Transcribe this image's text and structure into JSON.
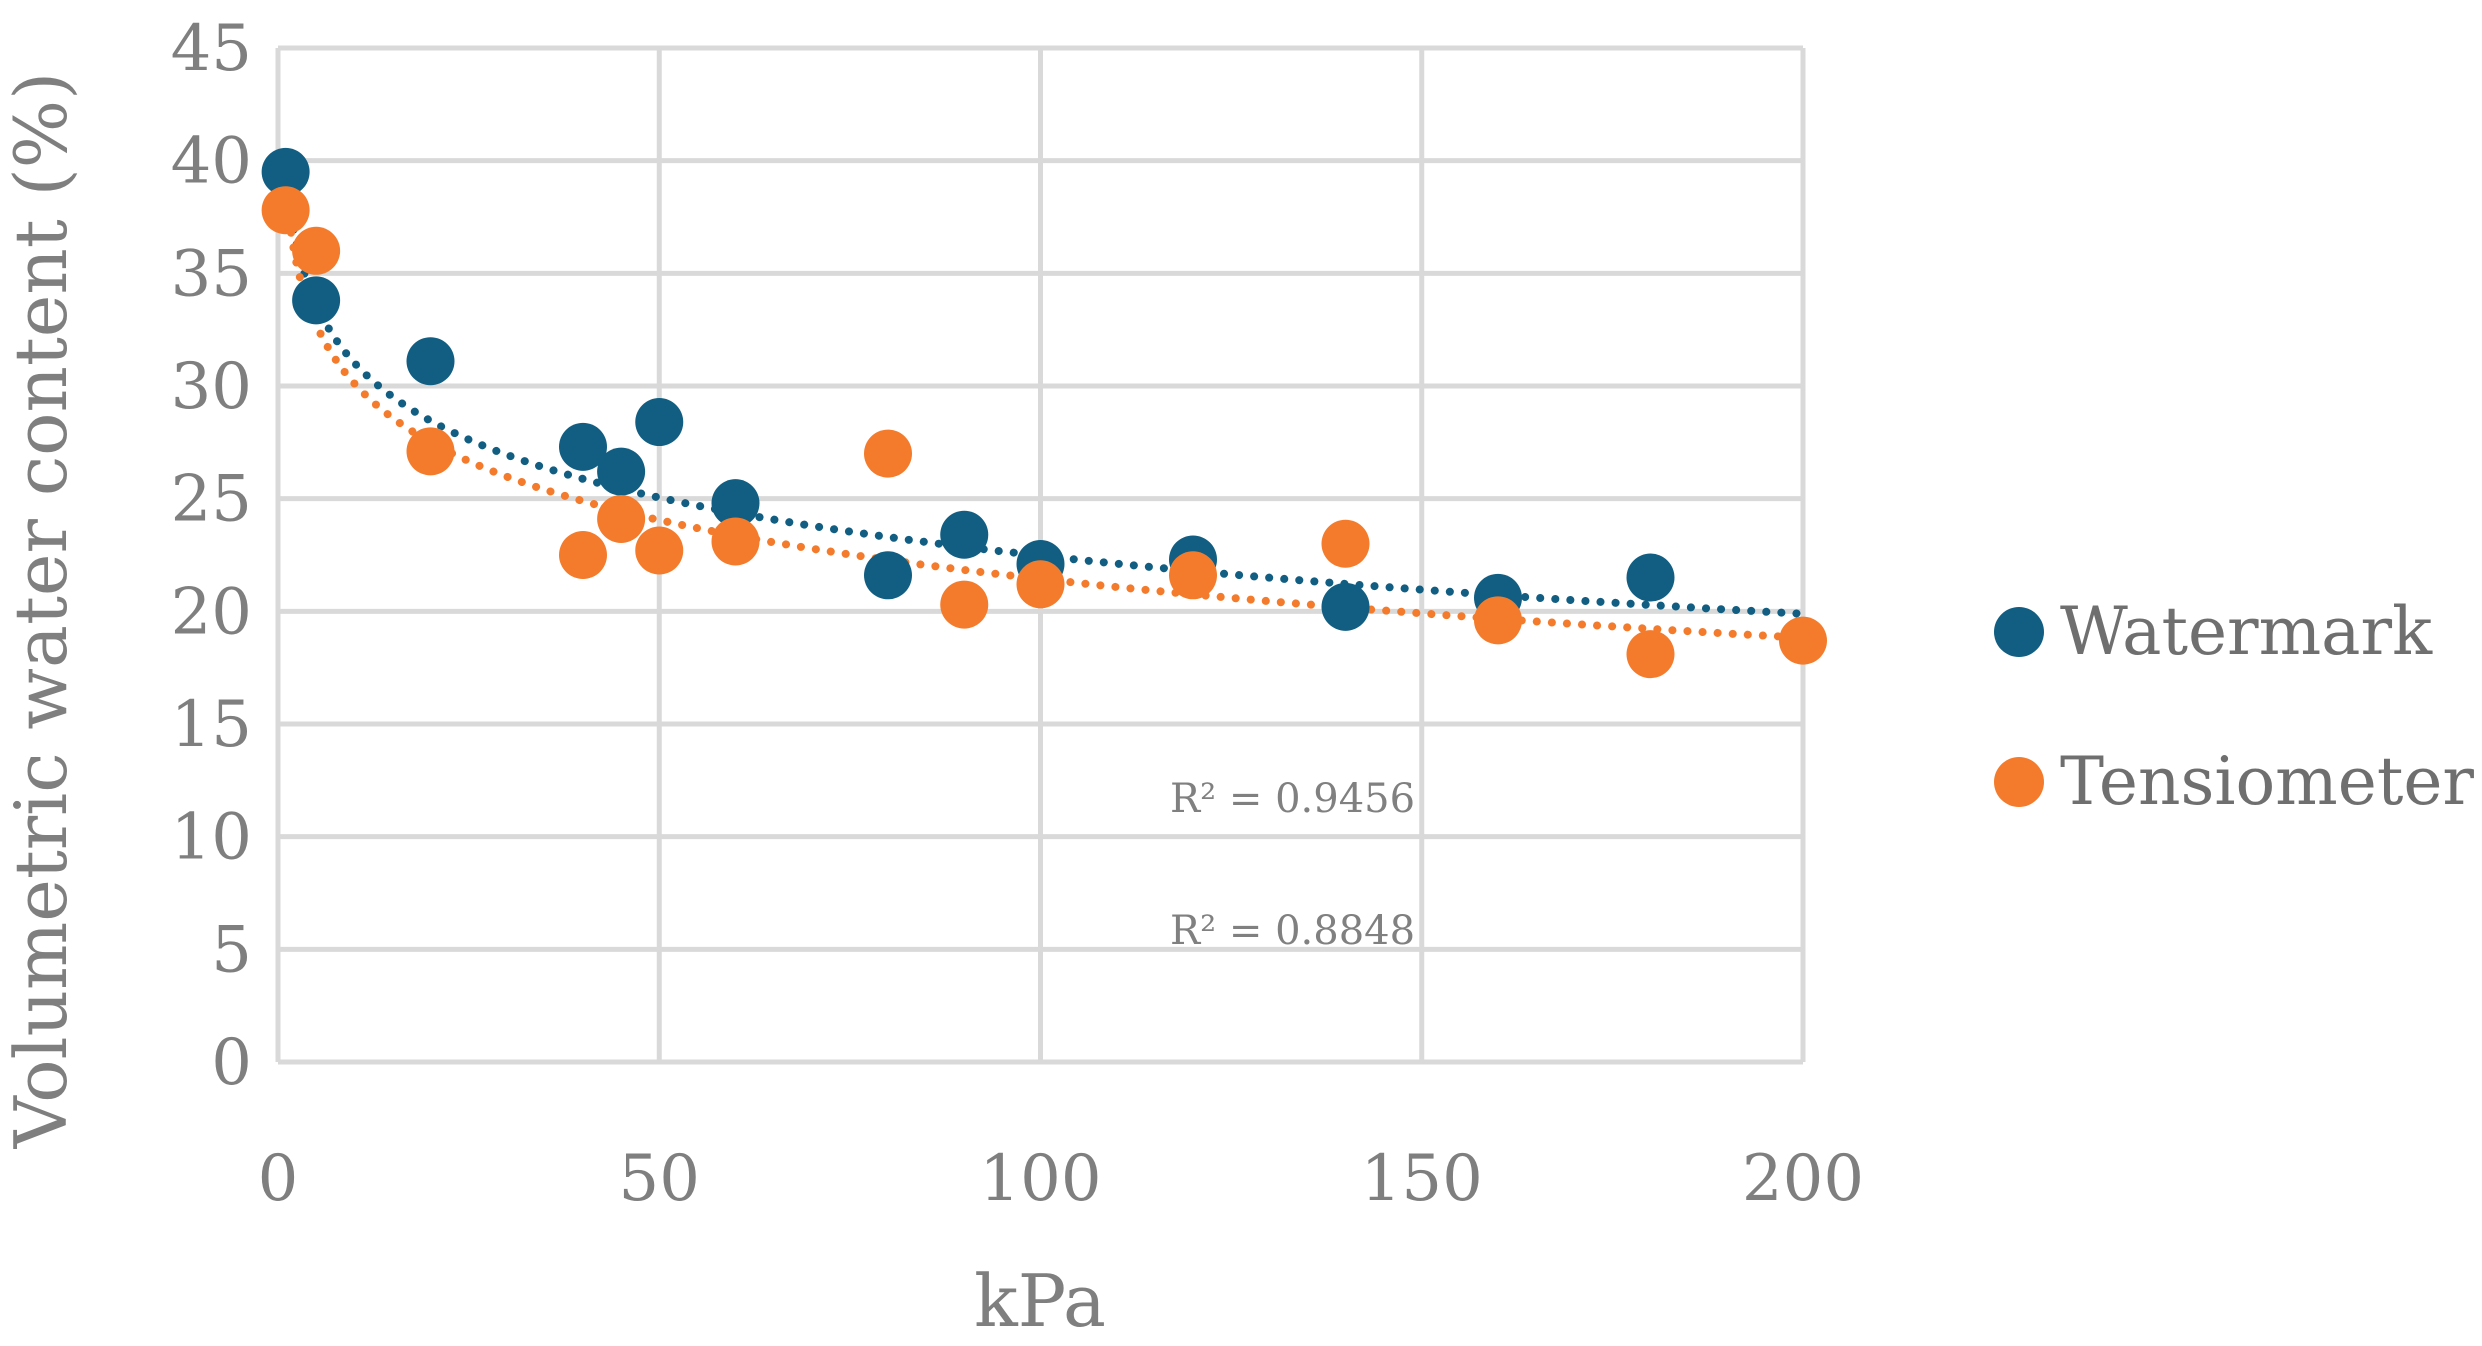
{
  "chart_data": {
    "type": "scatter",
    "title": "",
    "xlabel": "kPa",
    "ylabel": "Volumetric water content (%)",
    "xlim": [
      0,
      200
    ],
    "ylim": [
      0,
      45
    ],
    "x_ticks": [
      0,
      50,
      100,
      150,
      200
    ],
    "y_ticks": [
      0,
      5,
      10,
      15,
      20,
      25,
      30,
      35,
      40,
      45
    ],
    "grid": true,
    "legend_position": "right",
    "series": [
      {
        "name": "Watermark",
        "color": "#115e82",
        "x": [
          1,
          5,
          20,
          40,
          45,
          50,
          60,
          80,
          90,
          100,
          120,
          140,
          160,
          180
        ],
        "y": [
          39.5,
          33.8,
          31.1,
          27.3,
          26.2,
          28.4,
          24.8,
          21.6,
          23.4,
          22.1,
          22.3,
          20.2,
          20.6,
          21.5
        ],
        "trendline": {
          "type": "logarithmic",
          "a": 39.6,
          "b": -3.72
        },
        "r2_label": "R² = 0.9456"
      },
      {
        "name": "Tensiometer",
        "color": "#f47b2c",
        "x": [
          1,
          5,
          20,
          40,
          45,
          50,
          60,
          80,
          90,
          100,
          120,
          140,
          160,
          180,
          200
        ],
        "y": [
          37.8,
          36.0,
          27.1,
          22.5,
          24.1,
          22.7,
          23.1,
          27.0,
          20.3,
          21.2,
          21.6,
          23.0,
          19.6,
          18.1,
          18.7
        ],
        "trendline": {
          "type": "logarithmic",
          "a": 38.8,
          "b": -3.77
        },
        "r2_label": "R² = 0.8848"
      }
    ]
  }
}
